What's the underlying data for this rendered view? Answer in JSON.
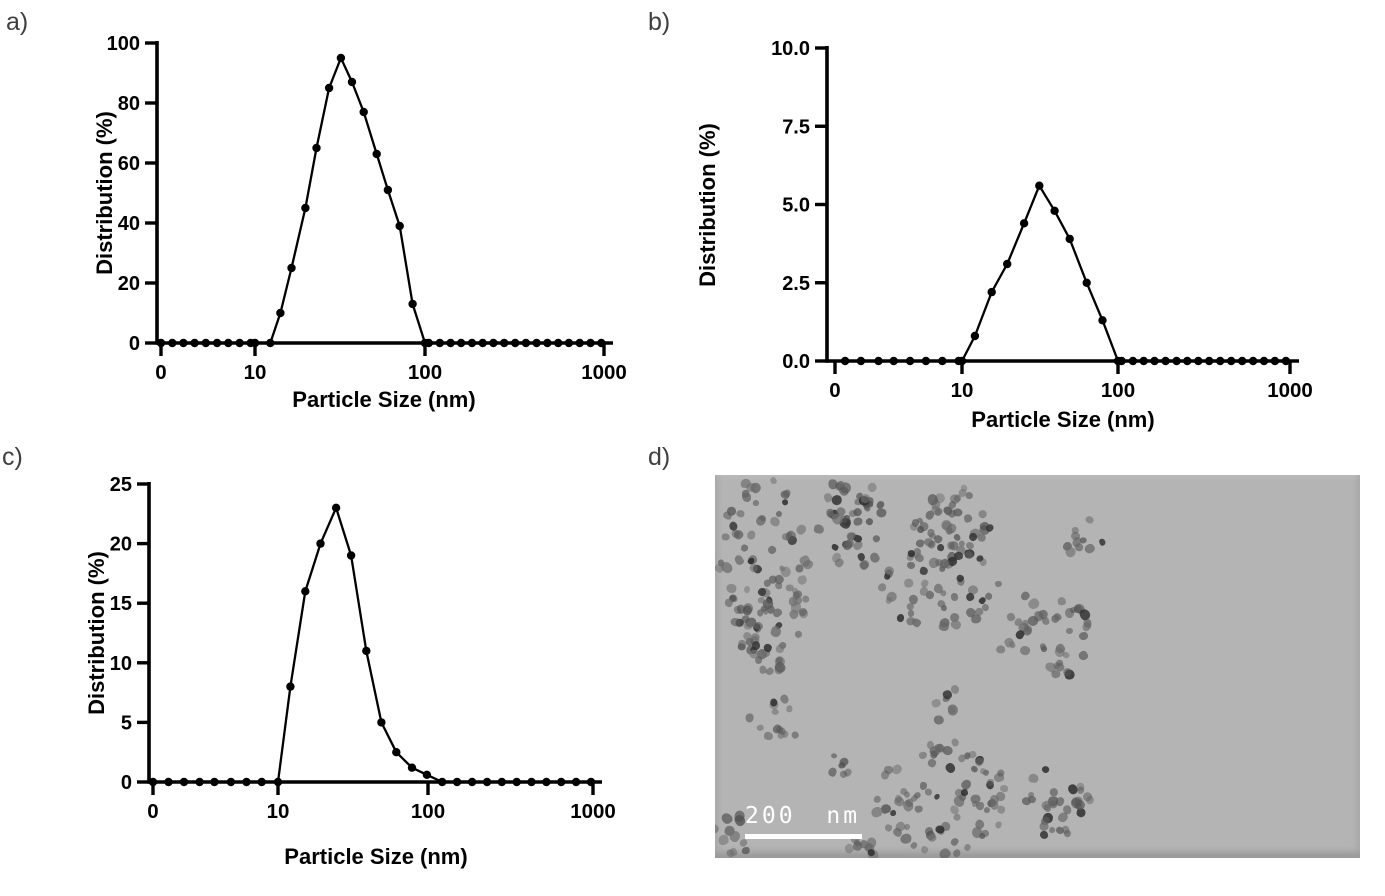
{
  "figure": {
    "panel_labels": [
      "a)",
      "b)",
      "c)",
      "d)"
    ],
    "x_axis_title": "Particle Size (nm)",
    "y_axis_title": "Distribution (%)",
    "line_color": "#000000",
    "marker_color": "#000000"
  },
  "tem_panel": {
    "label": "d)",
    "scale_bar_label": "200 nm",
    "description": "Greyscale TEM micrograph of small dark roughly-spherical nanoparticles (~7-9 px) grouped in irregular clusters on a uniform grey background; white scale bar bottom-left",
    "background_color": "#b4b4b4",
    "particle_color": "#5a5a5a"
  },
  "chart_data": [
    {
      "panel": "a",
      "type": "line",
      "title": "",
      "xlabel": "Particle Size (nm)",
      "ylabel": "Distribution (%)",
      "x_scale": "log",
      "x_tick_labels": [
        "0",
        "10",
        "100",
        "1000"
      ],
      "ylim": [
        0,
        100
      ],
      "y_ticks": [
        0,
        20,
        40,
        60,
        80,
        100
      ],
      "y_tick_labels": [
        "0",
        "20",
        "40",
        "60",
        "80",
        "100"
      ],
      "grid": false,
      "legend": "none",
      "peak": {
        "x": 32,
        "y": 95
      },
      "points": [
        [
          1,
          0
        ],
        [
          1.32,
          0
        ],
        [
          1.73,
          0
        ],
        [
          2.28,
          0
        ],
        [
          3.0,
          0
        ],
        [
          3.95,
          0
        ],
        [
          5.2,
          0
        ],
        [
          6.85,
          0
        ],
        [
          9.0,
          0
        ],
        [
          10,
          0
        ],
        [
          12.3,
          0
        ],
        [
          14.1,
          10
        ],
        [
          16.4,
          25
        ],
        [
          19.8,
          45
        ],
        [
          23,
          65
        ],
        [
          27.3,
          85
        ],
        [
          32,
          95
        ],
        [
          37.2,
          87
        ],
        [
          43.6,
          77
        ],
        [
          52,
          63
        ],
        [
          60.5,
          51
        ],
        [
          71,
          39
        ],
        [
          84.5,
          13
        ],
        [
          100,
          0
        ],
        [
          105,
          0
        ],
        [
          121,
          0
        ],
        [
          139,
          0
        ],
        [
          159,
          0
        ],
        [
          183,
          0
        ],
        [
          210,
          0
        ],
        [
          241,
          0
        ],
        [
          277,
          0
        ],
        [
          319,
          0
        ],
        [
          366,
          0
        ],
        [
          420,
          0
        ],
        [
          483,
          0
        ],
        [
          555,
          0
        ],
        [
          637,
          0
        ],
        [
          732,
          0
        ],
        [
          841,
          0
        ],
        [
          966,
          0
        ]
      ]
    },
    {
      "panel": "b",
      "type": "line",
      "title": "",
      "xlabel": "Particle Size (nm)",
      "ylabel": "Distribution (%)",
      "x_scale": "log",
      "x_tick_labels": [
        "0",
        "10",
        "100",
        "1000"
      ],
      "ylim": [
        0,
        10
      ],
      "y_ticks": [
        0,
        2.5,
        5,
        7.5,
        10
      ],
      "y_tick_labels": [
        "0.0",
        "2.5",
        "5.0",
        "7.5",
        "10.0"
      ],
      "grid": false,
      "legend": "none",
      "peak": {
        "x": 31.3,
        "y": 5.6
      },
      "points": [
        [
          1.2,
          0
        ],
        [
          1.6,
          0
        ],
        [
          2.2,
          0
        ],
        [
          2.9,
          0
        ],
        [
          3.9,
          0
        ],
        [
          5.2,
          0
        ],
        [
          7.0,
          0
        ],
        [
          9.4,
          0
        ],
        [
          10,
          0
        ],
        [
          12.1,
          0.8
        ],
        [
          15.5,
          2.2
        ],
        [
          19.5,
          3.1
        ],
        [
          25,
          4.4
        ],
        [
          31.3,
          5.6
        ],
        [
          39.2,
          4.8
        ],
        [
          49,
          3.9
        ],
        [
          63,
          2.5
        ],
        [
          79.5,
          1.3
        ],
        [
          100,
          0
        ],
        [
          105,
          0
        ],
        [
          122,
          0
        ],
        [
          141,
          0
        ],
        [
          163,
          0
        ],
        [
          189,
          0
        ],
        [
          219,
          0
        ],
        [
          253,
          0
        ],
        [
          293,
          0
        ],
        [
          339,
          0
        ],
        [
          393,
          0
        ],
        [
          455,
          0
        ],
        [
          527,
          0
        ],
        [
          610,
          0
        ],
        [
          706,
          0
        ],
        [
          817,
          0
        ],
        [
          946,
          0
        ]
      ]
    },
    {
      "panel": "c",
      "type": "line",
      "title": "",
      "xlabel": "Particle Size (nm)",
      "ylabel": "Distribution (%)",
      "x_scale": "log",
      "x_tick_labels": [
        "0",
        "10",
        "100",
        "1000"
      ],
      "ylim": [
        0,
        25
      ],
      "y_ticks": [
        0,
        5,
        10,
        15,
        20,
        25
      ],
      "y_tick_labels": [
        "0",
        "5",
        "10",
        "15",
        "20",
        "25"
      ],
      "grid": false,
      "legend": "none",
      "peak": {
        "x": 24.4,
        "y": 23
      },
      "points": [
        [
          1.0,
          0
        ],
        [
          1.33,
          0
        ],
        [
          1.77,
          0
        ],
        [
          2.36,
          0
        ],
        [
          3.1,
          0
        ],
        [
          4.2,
          0
        ],
        [
          5.6,
          0
        ],
        [
          7.4,
          0
        ],
        [
          10,
          0
        ],
        [
          12.1,
          8
        ],
        [
          15.2,
          16
        ],
        [
          19.2,
          20
        ],
        [
          24.4,
          23
        ],
        [
          30.7,
          19
        ],
        [
          38.8,
          11
        ],
        [
          48.9,
          5
        ],
        [
          61.5,
          2.5
        ],
        [
          78.2,
          1.2
        ],
        [
          98.4,
          0.6
        ],
        [
          122,
          0
        ],
        [
          150,
          0
        ],
        [
          185,
          0
        ],
        [
          228,
          0
        ],
        [
          280,
          0
        ],
        [
          345,
          0
        ],
        [
          424,
          0
        ],
        [
          522,
          0
        ],
        [
          642,
          0
        ],
        [
          790,
          0
        ],
        [
          972,
          0
        ]
      ]
    }
  ]
}
